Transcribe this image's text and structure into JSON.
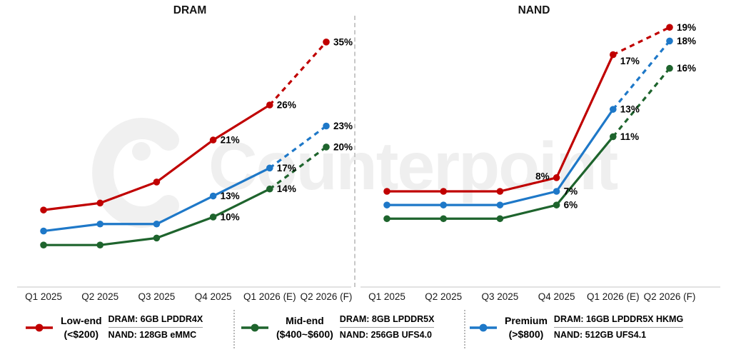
{
  "watermark": {
    "text": "Counterpoint"
  },
  "chart_data": [
    {
      "type": "line",
      "title": "DRAM",
      "categories": [
        "Q1 2025",
        "Q2 2025",
        "Q3 2025",
        "Q4 2025",
        "Q1 2026 (E)",
        "Q2 2026 (F)"
      ],
      "series": [
        {
          "name": "Low-end",
          "color": "#C00000",
          "values": [
            11,
            12,
            15,
            21,
            26,
            35
          ]
        },
        {
          "name": "Mid-end",
          "color": "#1E642D",
          "values": [
            6,
            6,
            7,
            10,
            14,
            20
          ]
        },
        {
          "name": "Premium",
          "color": "#1E78C8",
          "values": [
            8,
            9,
            9,
            13,
            17,
            23
          ]
        }
      ],
      "visible_point_labels": [
        "21%",
        "26%",
        "35%",
        "10%",
        "14%",
        "20%",
        "13%",
        "17%",
        "23%"
      ],
      "labels_shown_from_index": 3,
      "dashed_from_index": 4,
      "ylim": [
        0,
        41
      ],
      "grid": false,
      "legend_position": "bottom"
    },
    {
      "type": "line",
      "title": "NAND",
      "categories": [
        "Q1 2025",
        "Q2 2025",
        "Q3 2025",
        "Q4 2025",
        "Q1 2026 (E)",
        "Q2 2026 (F)"
      ],
      "series": [
        {
          "name": "Low-end",
          "color": "#C00000",
          "values": [
            7,
            7,
            7,
            8,
            17,
            19
          ],
          "label_overrides": {
            "3": {
              "side": "left",
              "dy": -2
            },
            "4": {
              "dy": 9
            }
          }
        },
        {
          "name": "Mid-end",
          "color": "#1E642D",
          "values": [
            5,
            5,
            5,
            6,
            11,
            16
          ]
        },
        {
          "name": "Premium",
          "color": "#1E78C8",
          "values": [
            6,
            6,
            6,
            7,
            13,
            18
          ]
        }
      ],
      "visible_point_labels": [
        "8%",
        "17%",
        "19%",
        "6%",
        "11%",
        "16%",
        "7%",
        "13%",
        "18%"
      ],
      "labels_shown_from_index": 3,
      "dashed_from_index": 4,
      "ylim": [
        0,
        21
      ],
      "grid": false,
      "legend_position": "bottom"
    }
  ],
  "legend": {
    "items": [
      {
        "name": "Low-end",
        "range": "(<$200)",
        "color": "#C00000",
        "dram_spec": "DRAM: 6GB LPDDR4X",
        "nand_spec": "NAND: 128GB eMMC"
      },
      {
        "name": "Mid-end",
        "range": "($400~$600)",
        "color": "#1E642D",
        "dram_spec": "DRAM: 8GB LPDDR5X",
        "nand_spec": "NAND: 256GB UFS4.0"
      },
      {
        "name": "Premium",
        "range": "(>$800)",
        "color": "#1E78C8",
        "dram_spec": "DRAM: 16GB LPDDR5X HKMG",
        "nand_spec": "NAND: 512GB UFS4.1"
      }
    ]
  }
}
